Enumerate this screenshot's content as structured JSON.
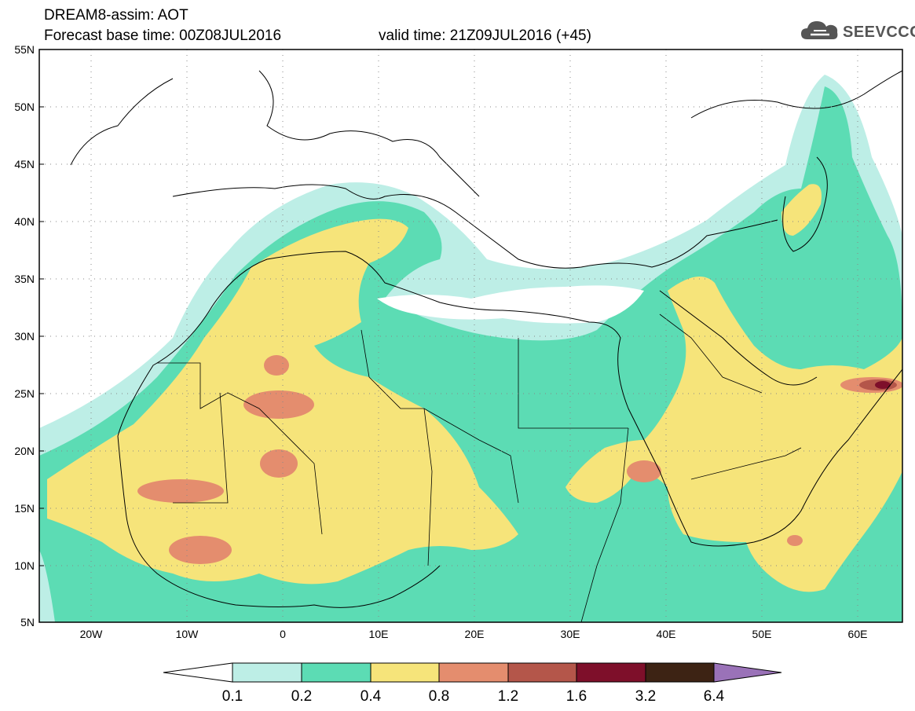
{
  "title_line1": "DREAM8-assim: AOT",
  "title_line2a": "Forecast base time: 00Z08JUL2016",
  "title_line2b": "valid time: 21Z09JUL2016 (+45)",
  "logo_text": "SEEVCCC",
  "map": {
    "lon_range": [
      -25,
      65
    ],
    "lat_range": [
      5,
      55
    ],
    "lat_ticks": [
      "55N",
      "50N",
      "45N",
      "40N",
      "35N",
      "30N",
      "25N",
      "20N",
      "15N",
      "10N",
      "5N"
    ],
    "lon_ticks": [
      "20W",
      "10W",
      "0",
      "10E",
      "20E",
      "30E",
      "40E",
      "50E",
      "60E"
    ]
  },
  "legend": {
    "labels": [
      "0.1",
      "0.2",
      "0.4",
      "0.8",
      "1.2",
      "1.6",
      "3.2",
      "6.4"
    ],
    "colors": {
      "under": "#ffffff",
      "c1": "#bdeee6",
      "c2": "#5cdcb4",
      "c3": "#f6e47a",
      "c4": "#e48d6e",
      "c5": "#b4564a",
      "c6": "#7e0f2a",
      "c7": "#3d2314",
      "over": "#9a72b8"
    }
  }
}
